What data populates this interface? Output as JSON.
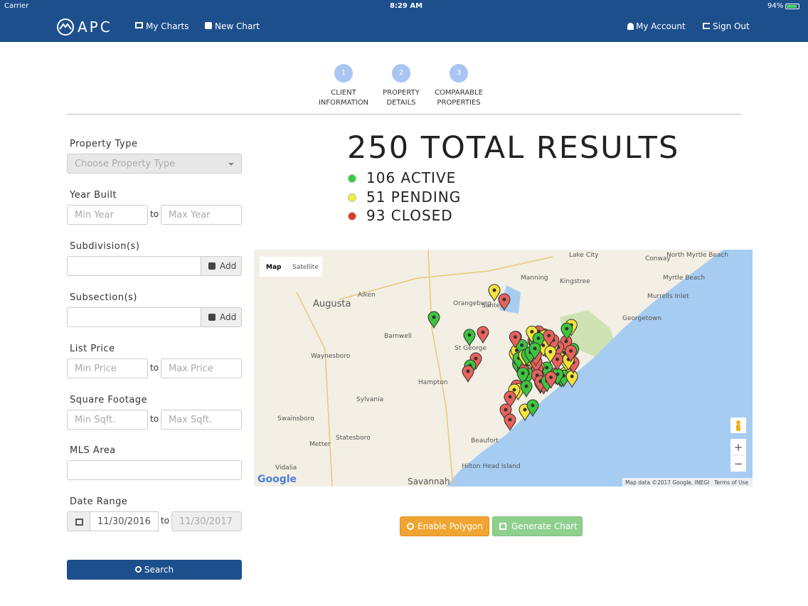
{
  "status_bar": {
    "carrier": "Carrier",
    "time": "8:29 AM",
    "battery": "94%"
  },
  "nav": {
    "brand": "APC",
    "items": [
      "My Charts",
      "New Chart"
    ],
    "account_items": [
      "My Account",
      "Sign Out"
    ]
  },
  "steps": [
    {
      "number": "1",
      "label": "CLIENT INFORMATION"
    },
    {
      "number": "2",
      "label": "PROPERTY DETAILS"
    },
    {
      "number": "3",
      "label": "COMPARABLE PROPERTIES"
    }
  ],
  "filters": {
    "property_type": {
      "label": "Property Type",
      "placeholder": "Choose Property Type"
    },
    "year_built": {
      "label": "Year Built",
      "min": "Min Year",
      "separator": "to",
      "max": "Max Year"
    },
    "subdivisions": {
      "label": "Subdivision(s)",
      "button": "Add"
    },
    "subsections": {
      "label": "Subsection(s)",
      "button": "Add"
    },
    "list_price": {
      "label": "List Price",
      "min": "Min Price",
      "separator": "to",
      "max": "Max Price"
    },
    "square_footage": {
      "label": "Square Footage",
      "min": "Min Sqft.",
      "separator": "to",
      "max": "Max Sqft."
    },
    "mls_area": {
      "label": "MLS Area"
    },
    "date_range": {
      "label": "Date Range",
      "start": "11/30/2016",
      "separator": "to",
      "end": "11/30/2017"
    },
    "search": "Search"
  },
  "results": {
    "total": "250 TOTAL RESULTS",
    "statuses": [
      {
        "label": "106 ACTIVE",
        "color": "#2fd13a"
      },
      {
        "label": "51 PENDING",
        "color": "#f2ee3a"
      },
      {
        "label": "93 CLOSED",
        "color": "#e0391e"
      }
    ]
  },
  "map": {
    "tabs": [
      "Map",
      "Satellite"
    ],
    "places": [
      "Lake City",
      "Conway",
      "North Myrtle Beach",
      "Myrtle Beach",
      "Manning",
      "Kingstree",
      "Murrells Inlet",
      "Aiken",
      "Augusta",
      "Orangeburg",
      "Santee",
      "Georgetown",
      "Barnwell",
      "St George",
      "Waynesboro",
      "Hampton",
      "Sylvania",
      "Swainsboro",
      "Statesboro",
      "Beaufort",
      "Metter",
      "Hilton Head Island",
      "Savannah",
      "Vidalia"
    ],
    "logo": "Google",
    "attribution": "Map data ©2017 Google, INEGI",
    "terms": "Terms of Use",
    "zoom": [
      "+",
      "−"
    ]
  },
  "actions": [
    "Enable Polygon",
    "Generate Chart"
  ]
}
